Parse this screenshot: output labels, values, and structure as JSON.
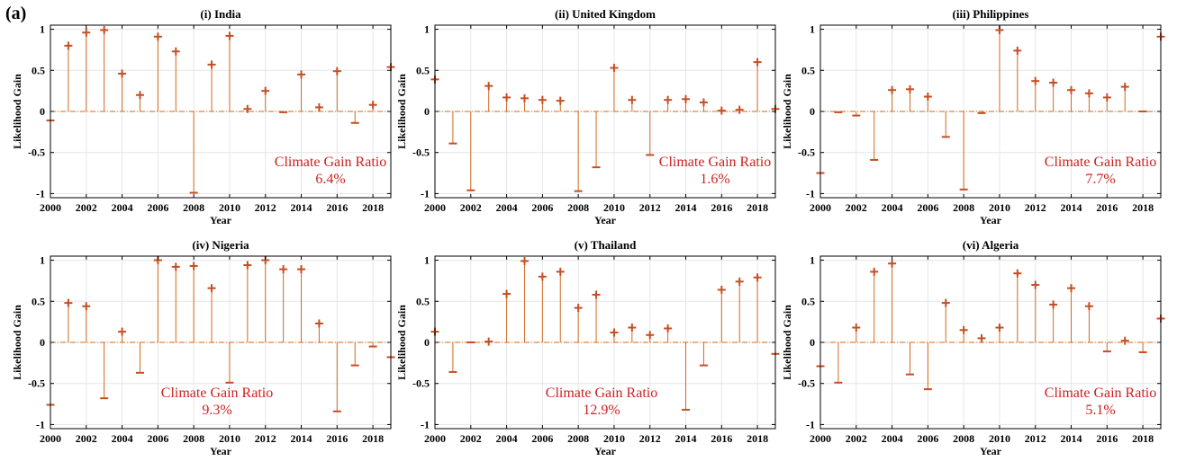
{
  "figure": {
    "panel_label": "(a)",
    "colors": {
      "stem": "#d2691e",
      "marker": "#c44f24",
      "ratio_text": "#cc2222",
      "grid": "#e6e6e6"
    }
  },
  "chart_data": [
    {
      "type": "stem",
      "title": "(i) India",
      "xlabel": "Year",
      "ylabel": "Likelihood Gain",
      "xlim": [
        2000,
        2019
      ],
      "ylim": [
        -1.05,
        1.05
      ],
      "xticks": [
        2000,
        2002,
        2004,
        2006,
        2008,
        2010,
        2012,
        2014,
        2016,
        2018
      ],
      "yticks": [
        -1,
        -0.5,
        0,
        0.5,
        1
      ],
      "ytick_labels": [
        "-1",
        "-0.5",
        "0",
        "0.5",
        "1"
      ],
      "grid": true,
      "x": [
        2000,
        2001,
        2002,
        2003,
        2004,
        2005,
        2006,
        2007,
        2008,
        2009,
        2010,
        2011,
        2012,
        2013,
        2014,
        2015,
        2016,
        2017,
        2018,
        2019
      ],
      "values": [
        -0.11,
        0.8,
        0.96,
        0.99,
        0.46,
        0.2,
        0.91,
        0.73,
        -0.99,
        0.57,
        0.92,
        0.03,
        0.25,
        -0.01,
        0.45,
        0.05,
        0.49,
        -0.14,
        0.08,
        0.54
      ],
      "annotation": {
        "label": "Climate Gain Ratio",
        "value": "6.4%"
      }
    },
    {
      "type": "stem",
      "title": "(ii) United Kingdom",
      "xlabel": "Year",
      "ylabel": "Likelihood Gain",
      "xlim": [
        2000,
        2019
      ],
      "ylim": [
        -1.05,
        1.05
      ],
      "xticks": [
        2000,
        2002,
        2004,
        2006,
        2008,
        2010,
        2012,
        2014,
        2016,
        2018
      ],
      "yticks": [
        -1,
        -0.5,
        0,
        0.5,
        1
      ],
      "ytick_labels": [
        "-1",
        "-0.5",
        "0",
        "0.5",
        "1"
      ],
      "grid": true,
      "x": [
        2000,
        2001,
        2002,
        2003,
        2004,
        2005,
        2006,
        2007,
        2008,
        2009,
        2010,
        2011,
        2012,
        2013,
        2014,
        2015,
        2016,
        2017,
        2018,
        2019
      ],
      "values": [
        0.39,
        -0.39,
        -0.96,
        0.31,
        0.17,
        0.16,
        0.14,
        0.13,
        -0.97,
        -0.68,
        0.53,
        0.14,
        -0.53,
        0.14,
        0.15,
        0.11,
        0.01,
        0.02,
        0.6,
        0.03
      ],
      "annotation": {
        "label": "Climate Gain Ratio",
        "value": "1.6%"
      }
    },
    {
      "type": "stem",
      "title": "(iii) Philippines",
      "xlabel": "Year",
      "ylabel": "Likelihood Gain",
      "xlim": [
        2000,
        2019
      ],
      "ylim": [
        -1.05,
        1.05
      ],
      "xticks": [
        2000,
        2002,
        2004,
        2006,
        2008,
        2010,
        2012,
        2014,
        2016,
        2018
      ],
      "yticks": [
        -1,
        -0.5,
        0,
        0.5,
        1
      ],
      "ytick_labels": [
        "-1",
        "-0.5",
        "0",
        "0.5",
        "1"
      ],
      "grid": true,
      "x": [
        2000,
        2001,
        2002,
        2003,
        2004,
        2005,
        2006,
        2007,
        2008,
        2009,
        2010,
        2011,
        2012,
        2013,
        2014,
        2015,
        2016,
        2017,
        2018,
        2019
      ],
      "values": [
        -0.75,
        -0.01,
        -0.05,
        -0.59,
        0.26,
        0.27,
        0.18,
        -0.31,
        -0.95,
        -0.02,
        0.99,
        0.74,
        0.37,
        0.35,
        0.26,
        0.22,
        0.17,
        0.3,
        0.0,
        0.91
      ],
      "annotation": {
        "label": "Climate Gain Ratio",
        "value": "7.7%"
      }
    },
    {
      "type": "stem",
      "title": "(iv) Nigeria",
      "xlabel": "Year",
      "ylabel": "Likelihood Gain",
      "xlim": [
        2000,
        2019
      ],
      "ylim": [
        -1.05,
        1.05
      ],
      "xticks": [
        2000,
        2002,
        2004,
        2006,
        2008,
        2010,
        2012,
        2014,
        2016,
        2018
      ],
      "yticks": [
        -1,
        -0.5,
        0,
        0.5,
        1
      ],
      "ytick_labels": [
        "-1",
        "-0.5",
        "0",
        "0.5",
        "1"
      ],
      "grid": true,
      "x": [
        2000,
        2001,
        2002,
        2003,
        2004,
        2005,
        2006,
        2007,
        2008,
        2009,
        2010,
        2011,
        2012,
        2013,
        2014,
        2015,
        2016,
        2017,
        2018,
        2019
      ],
      "values": [
        -0.76,
        0.48,
        0.44,
        -0.68,
        0.13,
        -0.37,
        1.0,
        0.92,
        0.93,
        0.66,
        -0.49,
        0.94,
        1.0,
        0.89,
        0.89,
        0.23,
        -0.84,
        -0.28,
        -0.05,
        -0.18
      ],
      "annotation": {
        "label": "Climate Gain Ratio",
        "value": "9.3%"
      }
    },
    {
      "type": "stem",
      "title": "(v) Thailand",
      "xlabel": "Year",
      "ylabel": "Likelihood Gain",
      "xlim": [
        2000,
        2019
      ],
      "ylim": [
        -1.05,
        1.05
      ],
      "xticks": [
        2000,
        2002,
        2004,
        2006,
        2008,
        2010,
        2012,
        2014,
        2016,
        2018
      ],
      "yticks": [
        -1,
        -0.5,
        0,
        0.5,
        1
      ],
      "ytick_labels": [
        "-1",
        "-0.5",
        "0",
        "0.5",
        "1"
      ],
      "grid": true,
      "x": [
        2000,
        2001,
        2002,
        2003,
        2004,
        2005,
        2006,
        2007,
        2008,
        2009,
        2010,
        2011,
        2012,
        2013,
        2014,
        2015,
        2016,
        2017,
        2018,
        2019
      ],
      "values": [
        0.13,
        -0.36,
        0.0,
        0.01,
        0.59,
        0.99,
        0.8,
        0.86,
        0.42,
        0.58,
        0.12,
        0.18,
        0.09,
        0.17,
        -0.82,
        -0.28,
        0.64,
        0.74,
        0.79,
        -0.14
      ],
      "annotation": {
        "label": "Climate Gain Ratio",
        "value": "12.9%"
      }
    },
    {
      "type": "stem",
      "title": "(vi) Algeria",
      "xlabel": "Year",
      "ylabel": "Likelihood Gain",
      "xlim": [
        2000,
        2019
      ],
      "ylim": [
        -1.05,
        1.05
      ],
      "xticks": [
        2000,
        2002,
        2004,
        2006,
        2008,
        2010,
        2012,
        2014,
        2016,
        2018
      ],
      "yticks": [
        -1,
        -0.5,
        0,
        0.5,
        1
      ],
      "ytick_labels": [
        "-1",
        "-0.5",
        "0",
        "0.5",
        "1"
      ],
      "grid": true,
      "x": [
        2000,
        2001,
        2002,
        2003,
        2004,
        2005,
        2006,
        2007,
        2008,
        2009,
        2010,
        2011,
        2012,
        2013,
        2014,
        2015,
        2016,
        2017,
        2018,
        2019
      ],
      "values": [
        -0.29,
        -0.49,
        0.18,
        0.86,
        0.96,
        -0.39,
        -0.57,
        0.48,
        0.15,
        0.05,
        0.18,
        0.84,
        0.7,
        0.46,
        0.66,
        0.44,
        -0.11,
        0.02,
        -0.12,
        0.29
      ],
      "annotation": {
        "label": "Climate Gain Ratio",
        "value": "5.1%"
      }
    }
  ]
}
